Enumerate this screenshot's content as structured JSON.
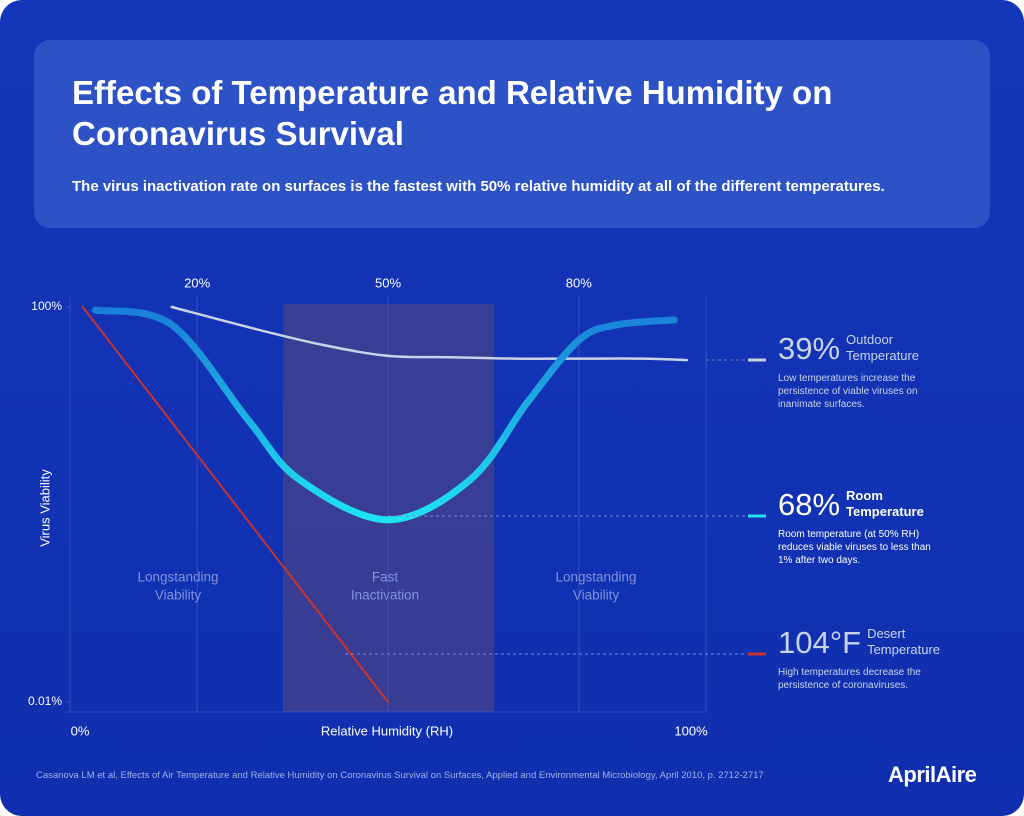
{
  "chart_data": {
    "type": "line",
    "title": "Effects of Temperature and Relative Humidity on Coronavirus Survival",
    "subtitle": "The virus inactivation rate on surfaces is the fastest with 50% relative humidity at all of the different temperatures.",
    "x_label": "Relative Humidity (RH)",
    "y_label": "Virus Viability",
    "log_y": true,
    "xlim": [
      0,
      100
    ],
    "ylim": [
      0.01,
      100
    ],
    "xticks_top": [
      {
        "value": 20,
        "label": "20%"
      },
      {
        "value": 50,
        "label": "50%"
      },
      {
        "value": 80,
        "label": "80%"
      }
    ],
    "xticks_bottom": [
      {
        "value": 0,
        "label": "0%"
      },
      {
        "value": 100,
        "label": "100%"
      }
    ],
    "yticks": [
      {
        "value": 0.01,
        "label": "0.01%"
      },
      {
        "value": 100,
        "label": "100%"
      }
    ],
    "highlight_range": [
      33.5,
      66.7
    ],
    "regions": [
      {
        "lines": [
          "Longstanding",
          "Viability"
        ]
      },
      {
        "lines": [
          "Fast",
          "Inactivation"
        ]
      },
      {
        "lines": [
          "Longstanding",
          "Viability"
        ]
      }
    ],
    "series": [
      {
        "name": "Outdoor Temperature",
        "callout": "39%",
        "color": "#c9d3e8",
        "note": "Low temperatures increase the persistence of viable viruses on inanimate surfaces.",
        "x": [
          16,
          30,
          40,
          50,
          60,
          70,
          80,
          90,
          97
        ],
        "values": [
          100,
          58,
          41,
          32,
          31,
          30,
          30,
          30,
          29
        ]
      },
      {
        "name": "Room Temperature",
        "callout": "68%",
        "color": "#1fe3f2",
        "note": "Room temperature (at 50% RH) reduces viable viruses to less than 1% after two days.",
        "x": [
          4,
          16,
          28,
          36,
          50,
          63,
          72,
          80,
          86,
          95
        ],
        "values": [
          93,
          66,
          7.2,
          1.8,
          0.7,
          1.8,
          11,
          46,
          66,
          74
        ]
      },
      {
        "name": "Desert Temperature",
        "callout": "104°F",
        "color": "#c8332e",
        "note": "High temperatures decrease the persistence of coronaviruses.",
        "x": [
          2,
          50
        ],
        "values": [
          100,
          0.01
        ]
      }
    ],
    "source": "Casanova LM et al, Effects of Air Temperature and Relative Humidity on Coronavirus Survival on Surfaces, Applied and Environmental Microbiology, April 2010, p. 2712-2717",
    "logo": "AprilAire"
  }
}
